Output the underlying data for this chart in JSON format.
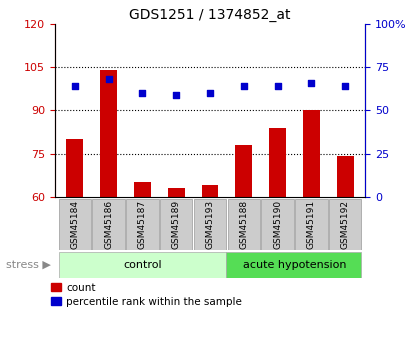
{
  "title": "GDS1251 / 1374852_at",
  "samples": [
    "GSM45184",
    "GSM45186",
    "GSM45187",
    "GSM45189",
    "GSM45193",
    "GSM45188",
    "GSM45190",
    "GSM45191",
    "GSM45192"
  ],
  "counts": [
    80,
    104,
    65,
    63,
    64,
    78,
    84,
    90,
    74
  ],
  "percentiles": [
    64,
    68,
    60,
    59,
    60,
    64,
    64,
    66,
    64
  ],
  "ylim_left": [
    60,
    120
  ],
  "ylim_right": [
    0,
    100
  ],
  "yticks_left": [
    60,
    75,
    90,
    105,
    120
  ],
  "yticks_right": [
    0,
    25,
    50,
    75,
    100
  ],
  "control_samples": 5,
  "acute_samples": 4,
  "control_label": "control",
  "acute_label": "acute hypotension",
  "stress_label": "stress",
  "legend_count": "count",
  "legend_pct": "percentile rank within the sample",
  "bar_color": "#cc0000",
  "dot_color": "#0000cc",
  "control_bg": "#ccffcc",
  "acute_bg": "#55dd55",
  "sample_bg": "#cccccc",
  "title_color": "black",
  "left_axis_color": "#cc0000",
  "right_axis_color": "#0000cc"
}
